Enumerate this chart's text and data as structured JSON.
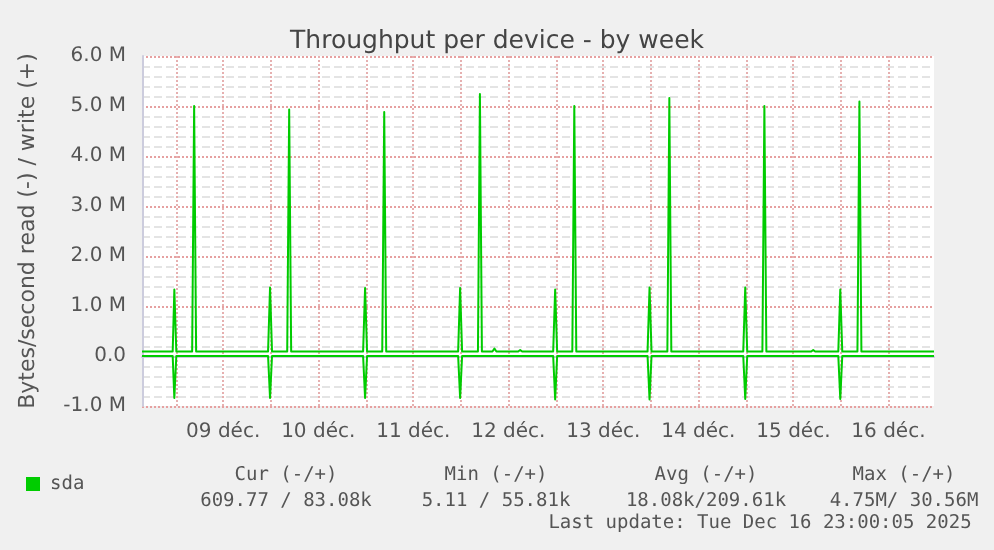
{
  "chart_data": {
    "type": "line",
    "title": "Throughput per device - by week",
    "ylabel": "Bytes/second read (-) / write (+)",
    "xlim": [
      "2025-12-08T15:30",
      "2025-12-16T23:30"
    ],
    "xticks": [
      {
        "value": "2025-12-09T00:00",
        "label": null
      },
      {
        "value": "2025-12-09T12:00",
        "label": "09 déc."
      },
      {
        "value": "2025-12-10T00:00",
        "label": null
      },
      {
        "value": "2025-12-10T12:00",
        "label": "10 déc."
      },
      {
        "value": "2025-12-11T00:00",
        "label": null
      },
      {
        "value": "2025-12-11T12:00",
        "label": "11 déc."
      },
      {
        "value": "2025-12-12T00:00",
        "label": null
      },
      {
        "value": "2025-12-12T12:00",
        "label": "12 déc."
      },
      {
        "value": "2025-12-13T00:00",
        "label": null
      },
      {
        "value": "2025-12-13T12:00",
        "label": "13 déc."
      },
      {
        "value": "2025-12-14T00:00",
        "label": null
      },
      {
        "value": "2025-12-14T12:00",
        "label": "14 déc."
      },
      {
        "value": "2025-12-15T00:00",
        "label": null
      },
      {
        "value": "2025-12-15T12:00",
        "label": "15 déc."
      },
      {
        "value": "2025-12-16T00:00",
        "label": null
      },
      {
        "value": "2025-12-16T12:00",
        "label": "16 déc."
      }
    ],
    "ylim": [
      -1,
      6
    ],
    "yticks": [
      {
        "value": -1,
        "label": "-1.0 M"
      },
      {
        "value": 0,
        "label": "0.0"
      },
      {
        "value": 1,
        "label": "1.0 M"
      },
      {
        "value": 2,
        "label": "2.0 M"
      },
      {
        "value": 3,
        "label": "3.0 M"
      },
      {
        "value": 4,
        "label": "4.0 M"
      },
      {
        "value": 5,
        "label": "5.0 M"
      },
      {
        "value": 6,
        "label": "6.0 M"
      }
    ],
    "grid": true,
    "legend": "bottom left",
    "marker": "none",
    "line_style": "solid",
    "series": [
      {
        "name": "sda",
        "color": "#00cc00",
        "x": [
          "2025-12-08T15:30",
          "2025-12-08T23:15",
          "2025-12-08T23:40",
          "2025-12-09T00:10",
          "2025-12-09T04:10",
          "2025-12-09T04:40",
          "2025-12-09T05:10",
          "2025-12-09T23:20",
          "2025-12-09T23:50",
          "2025-12-10T00:20",
          "2025-12-10T04:10",
          "2025-12-10T04:40",
          "2025-12-10T05:10",
          "2025-12-10T23:20",
          "2025-12-10T23:50",
          "2025-12-11T00:20",
          "2025-12-11T04:10",
          "2025-12-11T04:40",
          "2025-12-11T05:10",
          "2025-12-11T23:20",
          "2025-12-11T23:50",
          "2025-12-12T00:20",
          "2025-12-12T04:20",
          "2025-12-12T04:50",
          "2025-12-12T05:20",
          "2025-12-12T08:00",
          "2025-12-12T08:30",
          "2025-12-12T09:00",
          "2025-12-12T14:30",
          "2025-12-12T15:00",
          "2025-12-12T15:30",
          "2025-12-12T23:20",
          "2025-12-12T23:50",
          "2025-12-13T00:20",
          "2025-12-13T04:10",
          "2025-12-13T04:40",
          "2025-12-13T05:10",
          "2025-12-13T23:10",
          "2025-12-13T23:40",
          "2025-12-14T00:10",
          "2025-12-14T04:10",
          "2025-12-14T04:40",
          "2025-12-14T05:10",
          "2025-12-14T23:20",
          "2025-12-14T23:50",
          "2025-12-15T00:20",
          "2025-12-15T04:10",
          "2025-12-15T04:40",
          "2025-12-15T05:10",
          "2025-12-15T16:30",
          "2025-12-15T17:00",
          "2025-12-15T17:30",
          "2025-12-15T23:20",
          "2025-12-15T23:50",
          "2025-12-16T00:20",
          "2025-12-16T04:10",
          "2025-12-16T04:40",
          "2025-12-16T05:10",
          "2025-12-16T23:30"
        ],
        "values": [
          0.09,
          0.09,
          1.33,
          0.09,
          0.09,
          5.0,
          0.09,
          0.09,
          1.37,
          0.09,
          0.09,
          4.93,
          0.09,
          0.09,
          1.36,
          0.09,
          0.09,
          4.88,
          0.09,
          0.09,
          1.36,
          0.09,
          0.09,
          5.24,
          0.09,
          0.09,
          0.15,
          0.09,
          0.09,
          0.12,
          0.09,
          0.09,
          1.33,
          0.09,
          0.09,
          5.0,
          0.09,
          0.09,
          1.37,
          0.09,
          0.09,
          5.16,
          0.09,
          0.09,
          1.37,
          0.09,
          0.09,
          5.0,
          0.09,
          0.09,
          0.12,
          0.09,
          0.09,
          1.33,
          0.09,
          0.09,
          5.09,
          0.09,
          0.09
        ]
      },
      {
        "color": "#00cc00",
        "x": [
          "2025-12-08T15:30",
          "2025-12-08T23:15",
          "2025-12-08T23:40",
          "2025-12-09T00:10",
          "2025-12-09T23:20",
          "2025-12-09T23:50",
          "2025-12-10T00:20",
          "2025-12-10T23:20",
          "2025-12-10T23:50",
          "2025-12-11T00:20",
          "2025-12-11T23:20",
          "2025-12-11T23:50",
          "2025-12-12T00:20",
          "2025-12-12T23:20",
          "2025-12-12T23:50",
          "2025-12-13T00:20",
          "2025-12-13T23:10",
          "2025-12-13T23:40",
          "2025-12-14T00:10",
          "2025-12-14T23:20",
          "2025-12-14T23:50",
          "2025-12-15T00:20",
          "2025-12-15T23:20",
          "2025-12-15T23:50",
          "2025-12-16T00:20",
          "2025-12-16T23:30"
        ],
        "values": [
          0,
          0,
          -0.84,
          0,
          0,
          -0.84,
          0,
          0,
          -0.84,
          0,
          0,
          -0.84,
          0,
          0,
          -0.87,
          0,
          0,
          -0.87,
          0,
          0,
          -0.86,
          0,
          0,
          -0.86,
          0,
          0
        ]
      }
    ],
    "annotations": [
      "Cur (-/+)",
      "Min (-/+)",
      "Avg (-/+)",
      "Max (-/+)",
      "609.77 / 83.08k",
      "5.11 / 55.81k",
      "18.08k/209.61k",
      "4.75M/ 30.56M",
      "Last update: Tue Dec 16 23:00:05 2025"
    ]
  }
}
